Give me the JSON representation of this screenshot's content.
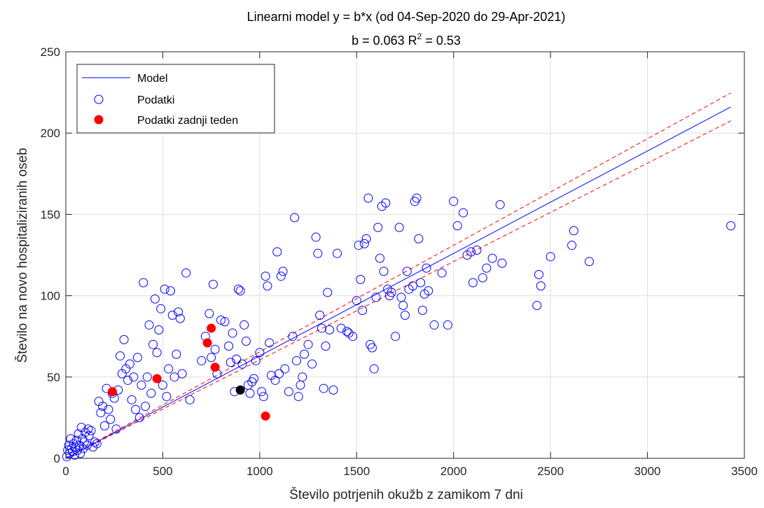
{
  "chart_data": {
    "type": "scatter",
    "title": "Linearni model y = b*x (od 04-Sep-2020 do 29-Apr-2021)",
    "subtitle": {
      "prefix": "b = 0.063 R",
      "superscript": "2",
      "suffix": " = 0.53"
    },
    "xlabel": "Število potrjenih okužb z zamikom 7 dni",
    "ylabel": "Število na novo hospitaliziranih oseb",
    "xlim": [
      0,
      3500
    ],
    "ylim": [
      0,
      250
    ],
    "xticks": [
      0,
      500,
      1000,
      1500,
      2000,
      2500,
      3000,
      3500
    ],
    "yticks": [
      0,
      50,
      100,
      150,
      200,
      250
    ],
    "grid": true,
    "legend_position": "top-left",
    "model": {
      "name": "Model",
      "slope": 0.063,
      "x_range": [
        0,
        3430
      ],
      "color": "#0000ff"
    },
    "confidence_band": {
      "slope_upper": 0.0655,
      "slope_lower": 0.0605,
      "x_range": [
        0,
        3430
      ],
      "color": "#ff0000"
    },
    "series": [
      {
        "name": "Podatki",
        "marker": "open-circle",
        "color": "#0000ff",
        "points": [
          [
            5,
            1
          ],
          [
            10,
            5
          ],
          [
            15,
            8
          ],
          [
            20,
            3
          ],
          [
            25,
            12
          ],
          [
            30,
            6
          ],
          [
            35,
            4
          ],
          [
            40,
            9
          ],
          [
            45,
            2
          ],
          [
            50,
            7
          ],
          [
            55,
            11
          ],
          [
            60,
            5
          ],
          [
            65,
            15
          ],
          [
            70,
            8
          ],
          [
            75,
            3
          ],
          [
            80,
            19
          ],
          [
            85,
            12
          ],
          [
            90,
            6
          ],
          [
            95,
            10
          ],
          [
            100,
            16
          ],
          [
            110,
            8
          ],
          [
            115,
            18
          ],
          [
            120,
            14
          ],
          [
            130,
            17
          ],
          [
            140,
            7
          ],
          [
            150,
            10
          ],
          [
            160,
            9
          ],
          [
            170,
            35
          ],
          [
            180,
            28
          ],
          [
            190,
            32
          ],
          [
            200,
            20
          ],
          [
            210,
            43
          ],
          [
            220,
            30
          ],
          [
            230,
            24
          ],
          [
            240,
            40
          ],
          [
            250,
            37
          ],
          [
            260,
            18
          ],
          [
            270,
            42
          ],
          [
            280,
            63
          ],
          [
            290,
            52
          ],
          [
            300,
            73
          ],
          [
            310,
            55
          ],
          [
            320,
            48
          ],
          [
            330,
            58
          ],
          [
            340,
            36
          ],
          [
            350,
            50
          ],
          [
            360,
            30
          ],
          [
            370,
            62
          ],
          [
            380,
            25
          ],
          [
            390,
            45
          ],
          [
            400,
            108
          ],
          [
            410,
            32
          ],
          [
            420,
            50
          ],
          [
            430,
            82
          ],
          [
            440,
            40
          ],
          [
            450,
            70
          ],
          [
            460,
            98
          ],
          [
            470,
            65
          ],
          [
            480,
            79
          ],
          [
            490,
            92
          ],
          [
            500,
            45
          ],
          [
            510,
            104
          ],
          [
            520,
            38
          ],
          [
            530,
            55
          ],
          [
            540,
            103
          ],
          [
            550,
            88
          ],
          [
            560,
            50
          ],
          [
            570,
            64
          ],
          [
            580,
            90
          ],
          [
            590,
            86
          ],
          [
            600,
            52
          ],
          [
            620,
            114
          ],
          [
            640,
            36
          ],
          [
            700,
            60
          ],
          [
            720,
            75
          ],
          [
            740,
            89
          ],
          [
            750,
            62
          ],
          [
            760,
            107
          ],
          [
            770,
            67
          ],
          [
            780,
            52
          ],
          [
            800,
            85
          ],
          [
            820,
            84
          ],
          [
            840,
            69
          ],
          [
            850,
            59
          ],
          [
            860,
            77
          ],
          [
            870,
            41
          ],
          [
            880,
            61
          ],
          [
            890,
            104
          ],
          [
            900,
            103
          ],
          [
            910,
            58
          ],
          [
            920,
            82
          ],
          [
            930,
            72
          ],
          [
            940,
            45
          ],
          [
            950,
            40
          ],
          [
            960,
            47
          ],
          [
            970,
            49
          ],
          [
            980,
            60
          ],
          [
            1000,
            65
          ],
          [
            1010,
            41
          ],
          [
            1020,
            38
          ],
          [
            1030,
            112
          ],
          [
            1040,
            106
          ],
          [
            1050,
            71
          ],
          [
            1060,
            51
          ],
          [
            1080,
            48
          ],
          [
            1090,
            127
          ],
          [
            1100,
            52
          ],
          [
            1110,
            112
          ],
          [
            1120,
            115
          ],
          [
            1130,
            55
          ],
          [
            1150,
            41
          ],
          [
            1170,
            75
          ],
          [
            1180,
            148
          ],
          [
            1190,
            60
          ],
          [
            1200,
            38
          ],
          [
            1210,
            45
          ],
          [
            1220,
            50
          ],
          [
            1230,
            64
          ],
          [
            1250,
            70
          ],
          [
            1270,
            58
          ],
          [
            1290,
            136
          ],
          [
            1300,
            126
          ],
          [
            1310,
            88
          ],
          [
            1320,
            80
          ],
          [
            1330,
            43
          ],
          [
            1340,
            69
          ],
          [
            1350,
            102
          ],
          [
            1360,
            79
          ],
          [
            1380,
            42
          ],
          [
            1400,
            126
          ],
          [
            1420,
            80
          ],
          [
            1450,
            78
          ],
          [
            1460,
            77
          ],
          [
            1480,
            75
          ],
          [
            1500,
            97
          ],
          [
            1510,
            131
          ],
          [
            1520,
            110
          ],
          [
            1530,
            91
          ],
          [
            1540,
            132
          ],
          [
            1550,
            135
          ],
          [
            1560,
            160
          ],
          [
            1570,
            70
          ],
          [
            1580,
            68
          ],
          [
            1590,
            55
          ],
          [
            1600,
            99
          ],
          [
            1610,
            142
          ],
          [
            1620,
            123
          ],
          [
            1630,
            155
          ],
          [
            1640,
            115
          ],
          [
            1650,
            157
          ],
          [
            1660,
            104
          ],
          [
            1670,
            100
          ],
          [
            1680,
            102
          ],
          [
            1700,
            75
          ],
          [
            1720,
            142
          ],
          [
            1730,
            99
          ],
          [
            1740,
            94
          ],
          [
            1750,
            88
          ],
          [
            1760,
            115
          ],
          [
            1770,
            104
          ],
          [
            1790,
            106
          ],
          [
            1800,
            158
          ],
          [
            1810,
            160
          ],
          [
            1820,
            135
          ],
          [
            1830,
            108
          ],
          [
            1840,
            91
          ],
          [
            1850,
            101
          ],
          [
            1860,
            117
          ],
          [
            1870,
            103
          ],
          [
            1900,
            82
          ],
          [
            1940,
            114
          ],
          [
            1970,
            82
          ],
          [
            2000,
            158
          ],
          [
            2020,
            143
          ],
          [
            2050,
            151
          ],
          [
            2070,
            125
          ],
          [
            2090,
            127
          ],
          [
            2100,
            108
          ],
          [
            2120,
            128
          ],
          [
            2150,
            111
          ],
          [
            2170,
            117
          ],
          [
            2200,
            123
          ],
          [
            2240,
            156
          ],
          [
            2250,
            120
          ],
          [
            2430,
            94
          ],
          [
            2440,
            113
          ],
          [
            2450,
            106
          ],
          [
            2500,
            124
          ],
          [
            2610,
            131
          ],
          [
            2620,
            140
          ],
          [
            2700,
            121
          ],
          [
            3430,
            143
          ]
        ]
      },
      {
        "name": "Podatki zadnji teden",
        "marker": "filled-circle",
        "color": "#ff0000",
        "points": [
          [
            240,
            41
          ],
          [
            470,
            49
          ],
          [
            730,
            71
          ],
          [
            750,
            80
          ],
          [
            770,
            56
          ],
          [
            1030,
            26
          ]
        ]
      },
      {
        "name": "",
        "marker": "filled-circle",
        "color": "#000000",
        "points": [
          [
            900,
            42
          ]
        ]
      }
    ]
  }
}
